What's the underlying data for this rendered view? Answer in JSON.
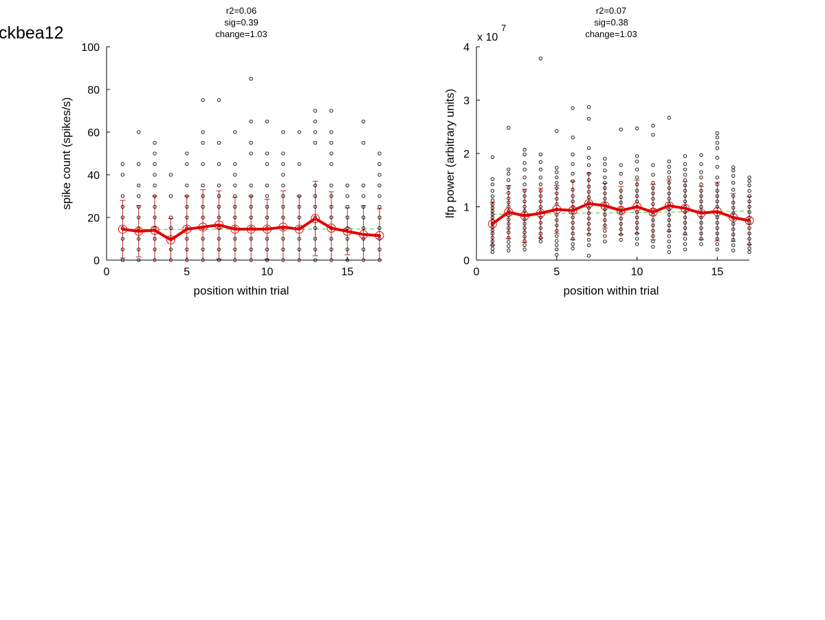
{
  "figure_title": "ckbea12",
  "chart_data": [
    {
      "type": "scatter",
      "title_lines": [
        "r2=0.06",
        "sig=0.39",
        "change=1.03"
      ],
      "xlabel": "position within trial",
      "ylabel": "spike count (spikes/s)",
      "exponent_label": "",
      "xlim": [
        0,
        17
      ],
      "ylim": [
        0,
        100
      ],
      "xticks": [
        0,
        5,
        10,
        15
      ],
      "yticks": [
        0,
        20,
        40,
        60,
        80,
        100
      ],
      "grid": false,
      "legend": "none",
      "colors": {
        "points": "#000000",
        "mean_line": "#e00000",
        "error_bars": "#c02020",
        "fit_line": "#33cc33"
      },
      "points": [
        {
          "x": 1,
          "y": [
            0,
            5,
            10,
            15,
            20,
            25,
            30,
            40,
            45
          ]
        },
        {
          "x": 2,
          "y": [
            0,
            5,
            10,
            15,
            20,
            25,
            30,
            35,
            45,
            60
          ]
        },
        {
          "x": 3,
          "y": [
            0,
            5,
            10,
            15,
            20,
            25,
            30,
            35,
            40,
            45,
            50,
            55
          ]
        },
        {
          "x": 4,
          "y": [
            0,
            5,
            10,
            15,
            20,
            30,
            40
          ]
        },
        {
          "x": 5,
          "y": [
            0,
            5,
            10,
            15,
            20,
            25,
            30,
            35,
            45,
            50
          ]
        },
        {
          "x": 6,
          "y": [
            0,
            5,
            10,
            15,
            20,
            25,
            30,
            35,
            45,
            55,
            60,
            75
          ]
        },
        {
          "x": 7,
          "y": [
            0,
            5,
            10,
            15,
            20,
            25,
            30,
            35,
            45,
            55,
            75
          ]
        },
        {
          "x": 8,
          "y": [
            0,
            5,
            10,
            15,
            20,
            25,
            30,
            35,
            40,
            45,
            60
          ]
        },
        {
          "x": 9,
          "y": [
            0,
            5,
            10,
            15,
            20,
            25,
            30,
            35,
            50,
            55,
            65,
            85
          ]
        },
        {
          "x": 10,
          "y": [
            0,
            5,
            10,
            15,
            20,
            25,
            30,
            35,
            45,
            50,
            65
          ]
        },
        {
          "x": 11,
          "y": [
            0,
            5,
            10,
            15,
            20,
            25,
            30,
            35,
            40,
            45,
            50,
            60
          ]
        },
        {
          "x": 12,
          "y": [
            0,
            5,
            10,
            15,
            20,
            25,
            30,
            45,
            60
          ]
        },
        {
          "x": 13,
          "y": [
            0,
            5,
            10,
            15,
            20,
            25,
            30,
            35,
            55,
            60,
            65,
            70
          ]
        },
        {
          "x": 14,
          "y": [
            0,
            5,
            10,
            15,
            20,
            25,
            30,
            35,
            45,
            50,
            55,
            60,
            70
          ]
        },
        {
          "x": 15,
          "y": [
            0,
            5,
            10,
            15,
            20,
            25,
            30,
            35
          ]
        },
        {
          "x": 16,
          "y": [
            0,
            5,
            10,
            15,
            20,
            25,
            30,
            35,
            55,
            65
          ]
        },
        {
          "x": 17,
          "y": [
            0,
            5,
            10,
            15,
            20,
            25,
            30,
            35,
            40,
            45,
            50
          ]
        }
      ],
      "means": {
        "x": [
          1,
          2,
          3,
          4,
          5,
          6,
          7,
          8,
          9,
          10,
          11,
          12,
          13,
          14,
          15,
          16,
          17
        ],
        "y": [
          14.5,
          13.5,
          14,
          9.5,
          14.5,
          15.5,
          16.5,
          14.5,
          14.5,
          14.5,
          15.5,
          14.5,
          19.5,
          15,
          13.5,
          12,
          11.5
        ],
        "err": [
          13.5,
          12,
          16,
          10,
          15.5,
          17.5,
          16,
          15,
          15.5,
          14,
          17,
          15.5,
          17.5,
          17,
          11,
          13.5,
          12.5
        ]
      },
      "fit": {
        "x": [
          1,
          17
        ],
        "y": [
          14.4,
          14.6
        ]
      }
    },
    {
      "type": "scatter",
      "title_lines": [
        "r2=0.07",
        "sig=0.38",
        "change=1.03"
      ],
      "xlabel": "position within trial",
      "ylabel": "lfp power (arbitrary units)",
      "exponent_label": "x 10",
      "exponent_power": "7",
      "xlim": [
        0,
        17
      ],
      "ylim": [
        0,
        4
      ],
      "xticks": [
        0,
        5,
        10,
        15
      ],
      "yticks": [
        0,
        1,
        2,
        3,
        4
      ],
      "grid": false,
      "legend": "none",
      "colors": {
        "points": "#000000",
        "mean_line": "#e00000",
        "error_bars": "#c02020",
        "fit_line": "#33cc33"
      },
      "points": [
        {
          "x": 1,
          "y": [
            0.15,
            0.22,
            0.28,
            0.35,
            0.42,
            0.5,
            0.56,
            0.62,
            0.68,
            0.74,
            0.8,
            0.86,
            0.92,
            0.98,
            1.04,
            1.12,
            1.2,
            1.3,
            1.42,
            1.52,
            1.93
          ]
        },
        {
          "x": 2,
          "y": [
            0.18,
            0.26,
            0.34,
            0.42,
            0.52,
            0.6,
            0.68,
            0.76,
            0.84,
            0.92,
            1.0,
            1.08,
            1.16,
            1.26,
            1.36,
            1.5,
            1.62,
            1.7,
            2.48
          ]
        },
        {
          "x": 3,
          "y": [
            0.2,
            0.28,
            0.36,
            0.44,
            0.52,
            0.6,
            0.68,
            0.76,
            0.84,
            0.92,
            1.0,
            1.1,
            1.2,
            1.3,
            1.42,
            1.55,
            1.7,
            1.82,
            1.98,
            2.07
          ]
        },
        {
          "x": 4,
          "y": [
            0.35,
            0.42,
            0.5,
            0.6,
            0.7,
            0.8,
            0.9,
            1.0,
            1.1,
            1.2,
            1.3,
            1.42,
            1.55,
            1.7,
            1.84,
            1.98,
            3.78
          ]
        },
        {
          "x": 5,
          "y": [
            0.1,
            0.2,
            0.28,
            0.36,
            0.45,
            0.55,
            0.65,
            0.75,
            0.85,
            0.95,
            1.05,
            1.15,
            1.25,
            1.35,
            1.45,
            1.55,
            1.65,
            1.73,
            2.42
          ]
        },
        {
          "x": 6,
          "y": [
            0.22,
            0.3,
            0.4,
            0.5,
            0.6,
            0.7,
            0.8,
            0.9,
            1.0,
            1.1,
            1.2,
            1.32,
            1.48,
            1.62,
            1.8,
            1.98,
            2.3,
            2.85
          ]
        },
        {
          "x": 7,
          "y": [
            0.08,
            0.28,
            0.38,
            0.48,
            0.58,
            0.68,
            0.78,
            0.88,
            0.98,
            1.08,
            1.18,
            1.28,
            1.38,
            1.5,
            1.62,
            1.78,
            1.92,
            2.1,
            2.65,
            2.87
          ]
        },
        {
          "x": 8,
          "y": [
            0.35,
            0.45,
            0.55,
            0.65,
            0.75,
            0.85,
            0.95,
            1.05,
            1.15,
            1.25,
            1.35,
            1.45,
            1.55,
            1.68,
            1.8,
            1.9
          ]
        },
        {
          "x": 9,
          "y": [
            0.38,
            0.48,
            0.58,
            0.68,
            0.78,
            0.88,
            0.98,
            1.08,
            1.18,
            1.3,
            1.45,
            1.62,
            1.78,
            2.45
          ]
        },
        {
          "x": 10,
          "y": [
            0.3,
            0.4,
            0.5,
            0.6,
            0.7,
            0.8,
            0.9,
            1.0,
            1.1,
            1.2,
            1.3,
            1.42,
            1.55,
            1.7,
            1.85,
            1.95,
            2.47
          ]
        },
        {
          "x": 11,
          "y": [
            0.25,
            0.35,
            0.45,
            0.55,
            0.65,
            0.75,
            0.85,
            0.95,
            1.05,
            1.15,
            1.25,
            1.35,
            1.45,
            1.6,
            1.78,
            2.35,
            2.52
          ]
        },
        {
          "x": 12,
          "y": [
            0.15,
            0.25,
            0.35,
            0.45,
            0.55,
            0.65,
            0.75,
            0.85,
            0.95,
            1.05,
            1.15,
            1.25,
            1.35,
            1.45,
            1.55,
            1.65,
            1.75,
            1.85,
            2.67
          ]
        },
        {
          "x": 13,
          "y": [
            0.2,
            0.3,
            0.4,
            0.5,
            0.6,
            0.7,
            0.8,
            0.9,
            1.0,
            1.1,
            1.2,
            1.3,
            1.4,
            1.5,
            1.6,
            1.7,
            1.8,
            1.95
          ]
        },
        {
          "x": 14,
          "y": [
            0.3,
            0.4,
            0.5,
            0.6,
            0.7,
            0.8,
            0.9,
            1.0,
            1.1,
            1.2,
            1.3,
            1.42,
            1.55,
            1.65,
            1.8,
            1.97
          ]
        },
        {
          "x": 15,
          "y": [
            0.2,
            0.3,
            0.4,
            0.5,
            0.6,
            0.7,
            0.8,
            0.9,
            1.0,
            1.1,
            1.2,
            1.3,
            1.42,
            1.55,
            1.75,
            1.92,
            2.1,
            2.2,
            2.3,
            2.38
          ]
        },
        {
          "x": 16,
          "y": [
            0.18,
            0.28,
            0.38,
            0.48,
            0.58,
            0.68,
            0.78,
            0.88,
            0.98,
            1.08,
            1.2,
            1.32,
            1.45,
            1.58,
            1.68,
            1.74
          ]
        },
        {
          "x": 17,
          "y": [
            0.15,
            0.22,
            0.3,
            0.4,
            0.5,
            0.6,
            0.7,
            0.8,
            0.9,
            1.0,
            1.1,
            1.2,
            1.3,
            1.4,
            1.48,
            1.55
          ]
        }
      ],
      "means": {
        "x": [
          1,
          2,
          3,
          4,
          5,
          6,
          7,
          8,
          9,
          10,
          11,
          12,
          13,
          14,
          15,
          16,
          17
        ],
        "y": [
          0.68,
          0.9,
          0.83,
          0.88,
          0.95,
          0.93,
          1.06,
          1.02,
          0.93,
          1.0,
          0.9,
          1.02,
          0.97,
          0.88,
          0.91,
          0.8,
          0.74
        ],
        "err": [
          0.4,
          0.5,
          0.5,
          0.47,
          0.45,
          0.55,
          0.57,
          0.42,
          0.45,
          0.5,
          0.52,
          0.48,
          0.5,
          0.5,
          0.55,
          0.45,
          0.45
        ]
      },
      "fit": {
        "x": [
          1,
          17
        ],
        "y": [
          0.86,
          0.92
        ]
      }
    }
  ]
}
